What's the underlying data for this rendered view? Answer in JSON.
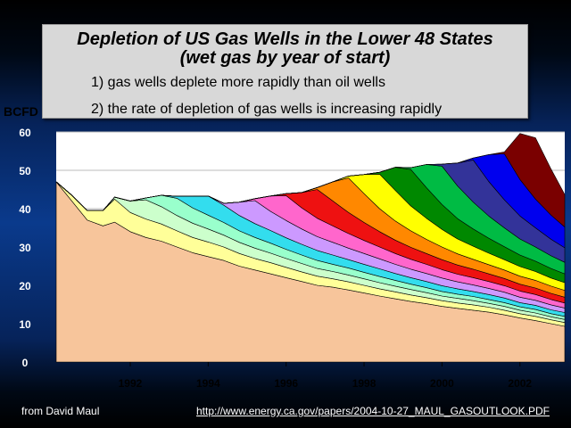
{
  "chart_data": {
    "type": "area",
    "title": "Depletion of US Gas Wells in the Lower 48 States",
    "subtitle": "(wet gas by year of start)",
    "annotations": [
      "1) gas wells deplete more rapidly than oil wells",
      "2) the rate of depletion of gas wells is increasing rapidly"
    ],
    "ylabel": "BCFD",
    "ylim": [
      0,
      60
    ],
    "yticks": [
      "0",
      "10",
      "20",
      "30",
      "40",
      "50",
      "60"
    ],
    "xlim": [
      1990.1,
      2003.15
    ],
    "xticks": [
      "1992",
      "1994",
      "1996",
      "1998",
      "2000",
      "2002"
    ],
    "xtick_values": [
      1992,
      1994,
      1996,
      1998,
      2000,
      2002
    ],
    "grid": true,
    "stacked": true,
    "x": [
      1990.1,
      1990.5,
      1990.9,
      1991.3,
      1991.6,
      1992.0,
      1992.4,
      1992.8,
      1993.2,
      1993.6,
      1994.0,
      1994.4,
      1994.8,
      1995.2,
      1995.6,
      1996.0,
      1996.4,
      1996.8,
      1997.2,
      1997.6,
      1998.0,
      1998.4,
      1998.8,
      1999.2,
      1999.6,
      2000.0,
      2000.4,
      2000.8,
      2001.2,
      2001.6,
      2002.0,
      2002.4,
      2002.8,
      2003.15
    ],
    "series": [
      {
        "color": "#f7c59b",
        "values": [
          47,
          42,
          37,
          35.5,
          36.5,
          34,
          32.5,
          31.5,
          30,
          28.5,
          27.5,
          26.5,
          25,
          24,
          23,
          22,
          21,
          20,
          19.5,
          18.8,
          18,
          17.2,
          16.5,
          15.8,
          15.2,
          14.5,
          14,
          13.5,
          13,
          12.3,
          11.5,
          10.8,
          10,
          9.3
        ]
      },
      {
        "color": "#ffff99",
        "values": [
          0,
          1.5,
          2.5,
          4,
          6,
          5,
          4.8,
          4.5,
          4.2,
          4,
          3.8,
          3.5,
          3.3,
          3,
          2.9,
          2.7,
          2.5,
          2.4,
          2.2,
          2.1,
          2,
          1.9,
          1.8,
          1.7,
          1.6,
          1.5,
          1.4,
          1.4,
          1.3,
          1.2,
          1.1,
          1.1,
          1,
          1
        ]
      },
      {
        "color": "#ccffcc",
        "values": [
          0,
          0,
          0,
          0,
          0.5,
          3,
          5,
          4.5,
          4,
          3.7,
          3.4,
          3.1,
          2.9,
          2.7,
          2.5,
          2.3,
          2.2,
          2,
          1.9,
          1.8,
          1.7,
          1.6,
          1.5,
          1.4,
          1.3,
          1.2,
          1.2,
          1.1,
          1,
          1,
          0.9,
          0.9,
          0.8,
          0.8
        ]
      },
      {
        "color": "#99ffcc",
        "values": [
          0,
          0,
          0,
          0,
          0,
          0,
          0.5,
          3,
          4.5,
          4,
          3.6,
          3.3,
          3,
          2.8,
          2.6,
          2.4,
          2.2,
          2.1,
          1.9,
          1.8,
          1.7,
          1.6,
          1.5,
          1.4,
          1.3,
          1.2,
          1.1,
          1.1,
          1,
          1,
          0.9,
          0.9,
          0.8,
          0.8
        ]
      },
      {
        "color": "#33ddee",
        "values": [
          0,
          0,
          0,
          0,
          0,
          0,
          0,
          0,
          0.5,
          3,
          5,
          4.5,
          4,
          3.6,
          3.3,
          3,
          2.8,
          2.6,
          2.4,
          2.2,
          2.1,
          2,
          1.8,
          1.7,
          1.6,
          1.5,
          1.4,
          1.3,
          1.3,
          1.2,
          1.1,
          1.1,
          1,
          1
        ]
      },
      {
        "color": "#cc99ff",
        "values": [
          0,
          0,
          0,
          0,
          0,
          0,
          0,
          0,
          0,
          0,
          0,
          0.5,
          3.5,
          6,
          5,
          4.5,
          4,
          3.6,
          3.3,
          3,
          2.8,
          2.6,
          2.4,
          2.2,
          2.1,
          2,
          1.8,
          1.7,
          1.6,
          1.5,
          1.4,
          1.3,
          1.3,
          1.2
        ]
      },
      {
        "color": "#ff66cc",
        "values": [
          0,
          0,
          0,
          0,
          0,
          0,
          0,
          0,
          0,
          0,
          0,
          0,
          0,
          0.5,
          4,
          6.5,
          5.5,
          4.8,
          4.3,
          3.8,
          3.4,
          3.1,
          2.8,
          2.6,
          2.4,
          2.2,
          2,
          1.9,
          1.8,
          1.7,
          1.6,
          1.5,
          1.4,
          1.3
        ]
      },
      {
        "color": "#ee1111",
        "values": [
          0,
          0,
          0,
          0,
          0,
          0,
          0,
          0,
          0,
          0,
          0,
          0,
          0,
          0,
          0,
          0.5,
          4,
          7.5,
          6.5,
          5.5,
          4.7,
          4,
          3.5,
          3.1,
          2.8,
          2.6,
          2.4,
          2.2,
          2,
          1.9,
          1.8,
          1.7,
          1.6,
          1.5
        ]
      },
      {
        "color": "#ff8800",
        "values": [
          0,
          0,
          0,
          0,
          0,
          0,
          0,
          0,
          0,
          0,
          0,
          0,
          0,
          0,
          0,
          0,
          0,
          0.5,
          5,
          9,
          7.5,
          6,
          5,
          4.3,
          3.7,
          3.3,
          2.9,
          2.6,
          2.4,
          2.2,
          2.1,
          2,
          1.9,
          1.8
        ]
      },
      {
        "color": "#ffff00",
        "values": [
          0,
          0,
          0,
          0,
          0,
          0,
          0,
          0,
          0,
          0,
          0,
          0,
          0,
          0,
          0,
          0,
          0,
          0,
          0,
          0.5,
          5,
          9,
          8,
          6.5,
          5.5,
          4.6,
          3.9,
          3.4,
          3,
          2.7,
          2.5,
          2.3,
          2.1,
          2
        ]
      },
      {
        "color": "#008800",
        "values": [
          0,
          0,
          0,
          0,
          0,
          0,
          0,
          0,
          0,
          0,
          0,
          0,
          0,
          0,
          0,
          0,
          0,
          0,
          0,
          0,
          0,
          0.5,
          6,
          9.5,
          8,
          6.5,
          5.3,
          4.5,
          3.9,
          3.4,
          3,
          2.7,
          2.5,
          2.3
        ]
      },
      {
        "color": "#00bb44",
        "values": [
          0,
          0,
          0,
          0,
          0,
          0,
          0,
          0,
          0,
          0,
          0,
          0,
          0,
          0,
          0,
          0,
          0,
          0,
          0,
          0,
          0,
          0,
          0,
          0.5,
          6,
          10,
          8.5,
          7,
          5.8,
          4.9,
          4.2,
          3.7,
          3.3,
          3
        ]
      },
      {
        "color": "#333399",
        "values": [
          0,
          0,
          0,
          0,
          0,
          0,
          0,
          0,
          0,
          0,
          0,
          0,
          0,
          0,
          0,
          0,
          0,
          0,
          0,
          0,
          0,
          0,
          0,
          0,
          0,
          0.5,
          6,
          11,
          9,
          7.3,
          6,
          5,
          4.3,
          3.8
        ]
      },
      {
        "color": "#0000ee",
        "values": [
          0,
          0,
          0,
          0,
          0,
          0,
          0,
          0,
          0,
          0,
          0,
          0,
          0,
          0,
          0,
          0,
          0,
          0,
          0,
          0,
          0,
          0,
          0,
          0,
          0,
          0,
          0,
          0.5,
          7,
          12,
          9.5,
          7.5,
          6.3,
          5.4
        ]
      },
      {
        "color": "#7a0000",
        "values": [
          0,
          0,
          0,
          0,
          0,
          0,
          0,
          0,
          0,
          0,
          0,
          0,
          0,
          0,
          0,
          0,
          0,
          0,
          0,
          0,
          0,
          0,
          0,
          0,
          0,
          0,
          0,
          0,
          0,
          0.5,
          12,
          16,
          12,
          8.5
        ]
      }
    ]
  },
  "footer": {
    "credit": "from David Maul",
    "url": "http://www.energy.ca.gov/papers/2004-10-27_MAUL_GASOUTLOOK.PDF"
  }
}
